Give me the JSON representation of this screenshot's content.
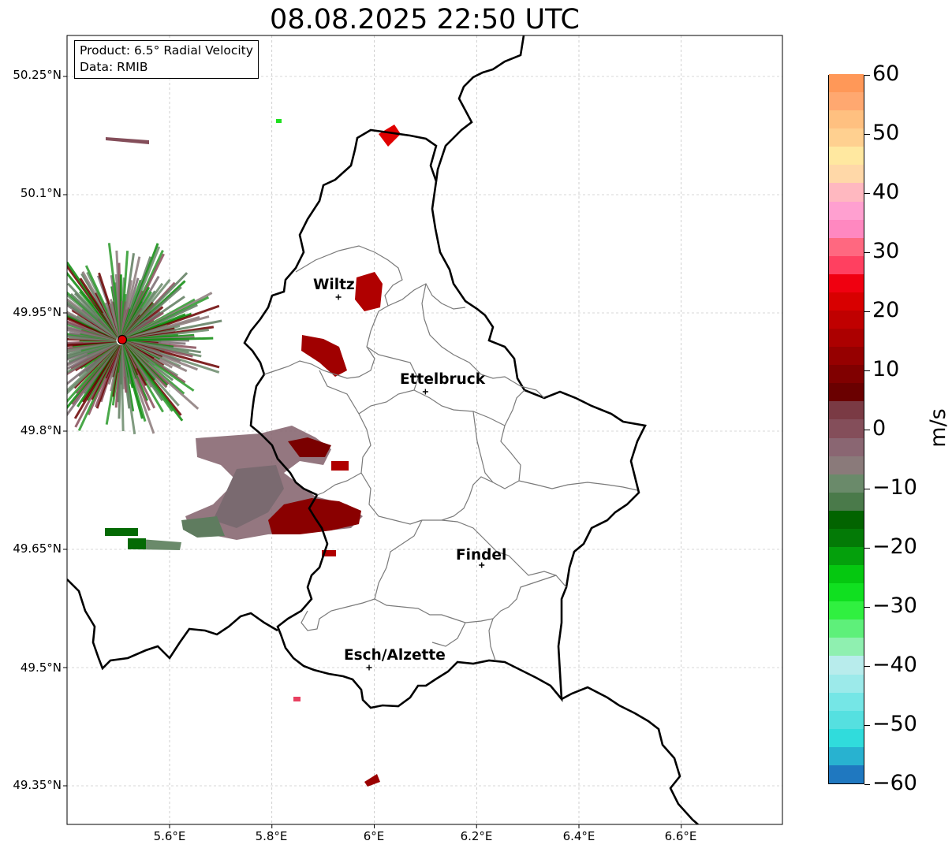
{
  "title": "08.08.2025 22:50 UTC",
  "info": {
    "product": "Product: 6.5° Radial Velocity",
    "data": "Data: RMIB"
  },
  "map": {
    "lat_labels": [
      "50.25°N",
      "50.1°N",
      "49.95°N",
      "49.8°N",
      "49.65°N",
      "49.5°N",
      "49.35°N"
    ],
    "lon_labels": [
      "5.6°E",
      "5.8°E",
      "6°E",
      "6.2°E",
      "6.4°E",
      "6.6°E"
    ],
    "cities": [
      {
        "name": "Wiltz",
        "lon": 5.93,
        "lat": 49.97
      },
      {
        "name": "Ettelbruck",
        "lon": 6.1,
        "lat": 49.85
      },
      {
        "name": "Findel",
        "lon": 6.21,
        "lat": 49.63
      },
      {
        "name": "Esch/Alzette",
        "lon": 5.99,
        "lat": 49.5
      }
    ],
    "radar_site": {
      "lon": 5.505,
      "lat": 49.915
    },
    "extent": {
      "lon_min": 5.4,
      "lon_max": 6.8,
      "lat_min": 49.3,
      "lat_max": 50.3
    },
    "grid": true
  },
  "colorbar": {
    "unit": "m/s",
    "min": -60,
    "max": 60,
    "tick_labels": [
      "60",
      "50",
      "40",
      "30",
      "20",
      "10",
      "0",
      "−10",
      "−20",
      "−30",
      "−40",
      "−50",
      "−60"
    ],
    "tick_values": [
      60,
      50,
      40,
      30,
      20,
      10,
      0,
      -10,
      -20,
      -30,
      -40,
      -50,
      -60
    ],
    "colors": [
      "#1f78c0",
      "#28b2d0",
      "#30dcdc",
      "#55e0e0",
      "#75e6e6",
      "#9ceaea",
      "#b8ecec",
      "#8ff0b0",
      "#5ef07a",
      "#30f040",
      "#10e020",
      "#05c810",
      "#04a00c",
      "#037a06",
      "#026400",
      "#4a7a4a",
      "#6a8a6a",
      "#8a7a7a",
      "#8a6672",
      "#844e5a",
      "#7a3a44",
      "#6a0000",
      "#800000",
      "#960000",
      "#ac0000",
      "#c00000",
      "#d80000",
      "#f00010",
      "#ff4060",
      "#ff6880",
      "#ff88c0",
      "#ffa0d0",
      "#ffb8c0",
      "#ffd8a8",
      "#ffe8a0",
      "#ffd090",
      "#ffc080",
      "#ffa870",
      "#ff9858"
    ]
  }
}
